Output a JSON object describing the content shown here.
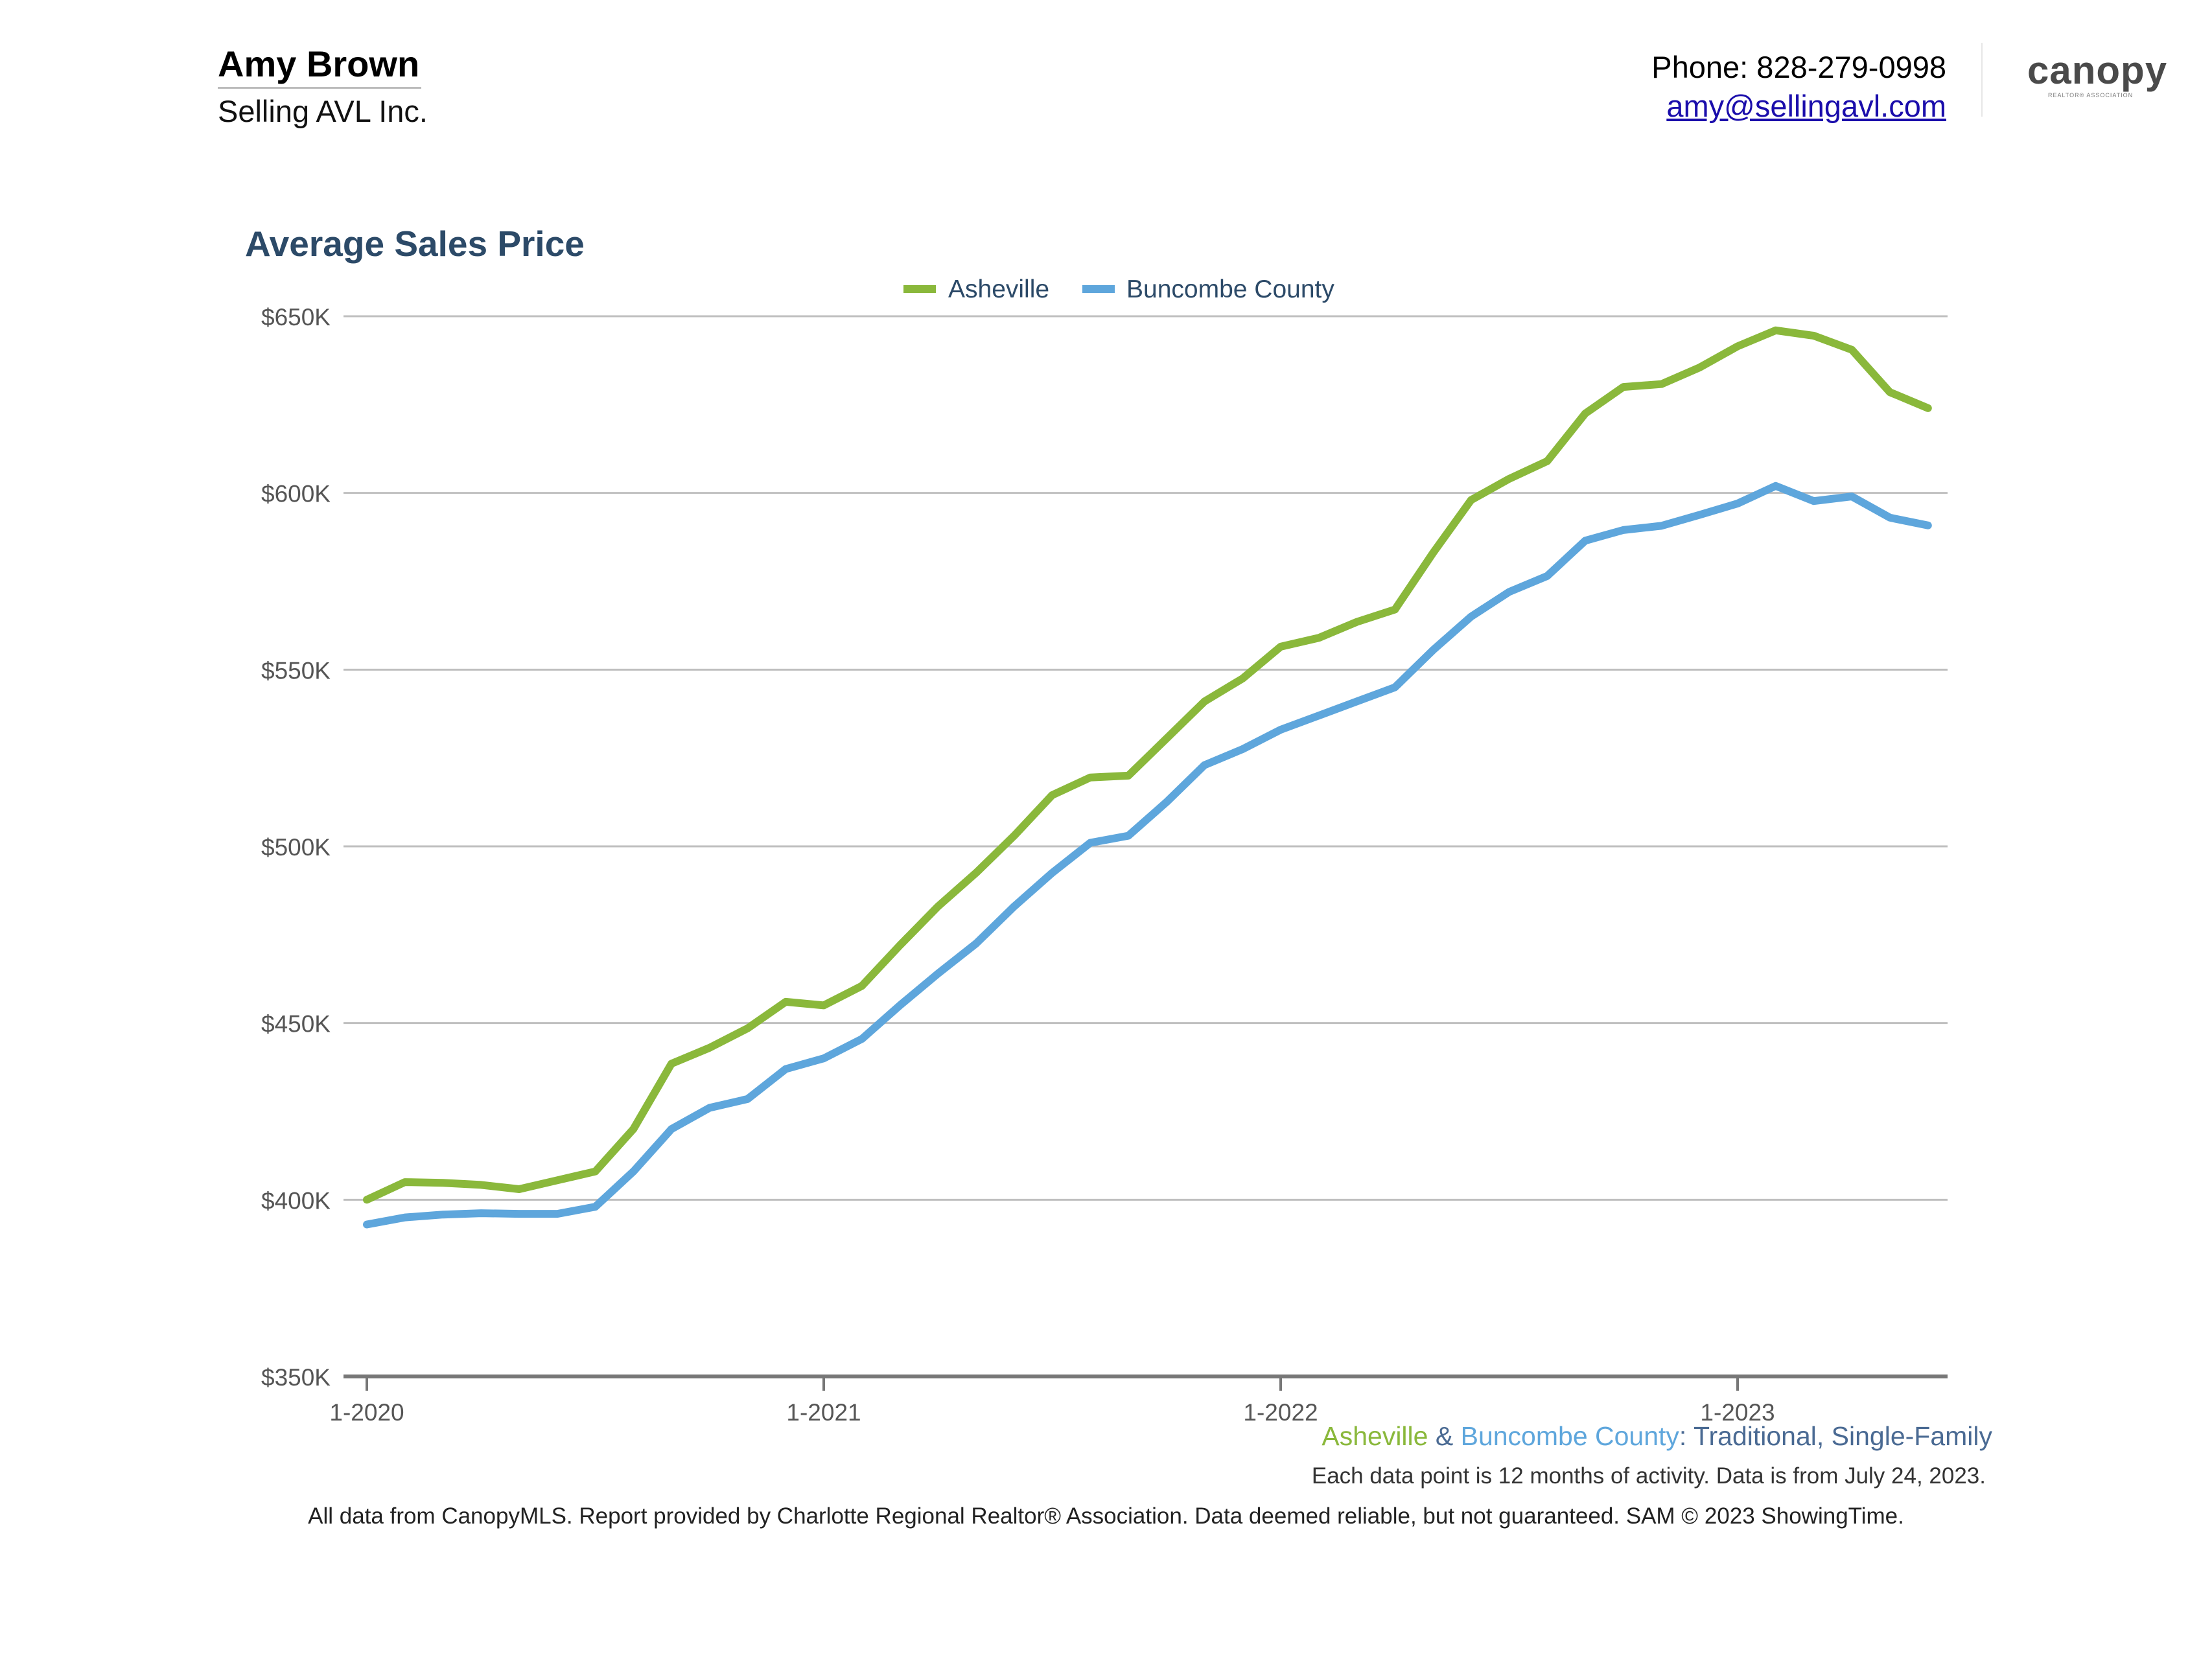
{
  "header": {
    "agent_name": "Amy Brown",
    "company": "Selling AVL Inc.",
    "phone": "Phone: 828-279-0998",
    "email": "amy@sellingavl.com",
    "logo_text": "canopy",
    "logo_subtext": "REALTOR® ASSOCIATION"
  },
  "chart_data": {
    "type": "line",
    "title": "Average Sales Price",
    "xlabel": "",
    "ylabel": "",
    "x": [
      "1-2020",
      "2-2020",
      "3-2020",
      "4-2020",
      "5-2020",
      "6-2020",
      "7-2020",
      "8-2020",
      "9-2020",
      "10-2020",
      "11-2020",
      "12-2020",
      "1-2021",
      "2-2021",
      "3-2021",
      "4-2021",
      "5-2021",
      "6-2021",
      "7-2021",
      "8-2021",
      "9-2021",
      "10-2021",
      "11-2021",
      "12-2021",
      "1-2022",
      "2-2022",
      "3-2022",
      "4-2022",
      "5-2022",
      "6-2022",
      "7-2022",
      "8-2022",
      "9-2022",
      "10-2022",
      "11-2022",
      "12-2022",
      "1-2023",
      "2-2023",
      "3-2023",
      "4-2023",
      "5-2023",
      "6-2023"
    ],
    "x_ticks": [
      "1-2020",
      "1-2021",
      "1-2022",
      "1-2023"
    ],
    "ylim": [
      350000,
      650000
    ],
    "y_ticks": [
      350000,
      400000,
      450000,
      500000,
      550000,
      600000,
      650000
    ],
    "y_tick_labels": [
      "$350K",
      "$400K",
      "$450K",
      "$500K",
      "$550K",
      "$600K",
      "$650K"
    ],
    "grid": true,
    "legend": "top-center",
    "series": [
      {
        "name": "Asheville",
        "color": "#8ab83b",
        "values": [
          400000,
          405000,
          404800,
          404200,
          403000,
          405500,
          408000,
          420000,
          438500,
          443000,
          448500,
          456000,
          455000,
          460500,
          472000,
          483000,
          492500,
          503000,
          514500,
          519500,
          520000,
          530500,
          541000,
          547500,
          556500,
          559000,
          563500,
          567000,
          583000,
          598000,
          604000,
          609000,
          622500,
          630000,
          630800,
          635500,
          641500,
          646000,
          644500,
          640500,
          628500,
          624000
        ]
      },
      {
        "name": "Buncombe County",
        "color": "#5ea6dc",
        "values": [
          393000,
          395000,
          395800,
          396200,
          396000,
          396000,
          398000,
          408000,
          420000,
          426000,
          428500,
          437000,
          440000,
          445500,
          455000,
          464000,
          472500,
          483000,
          492500,
          501000,
          503000,
          512500,
          523000,
          527500,
          533000,
          537000,
          541000,
          545000,
          555500,
          565000,
          572000,
          576500,
          586500,
          589500,
          590700,
          593800,
          597000,
          602000,
          597700,
          599000,
          593000,
          590800
        ]
      }
    ]
  },
  "footer": {
    "series_asheville": "Asheville",
    "amp": " & ",
    "series_buncombe": "Buncombe County",
    "filter": ": Traditional, Single-Family",
    "note": "Each data point is 12 months of activity. Data is from July 24, 2023.",
    "disclaimer": "All data from CanopyMLS. Report provided by Charlotte Regional Realtor® Association. Data deemed reliable, but not guaranteed. SAM © 2023 ShowingTime."
  }
}
